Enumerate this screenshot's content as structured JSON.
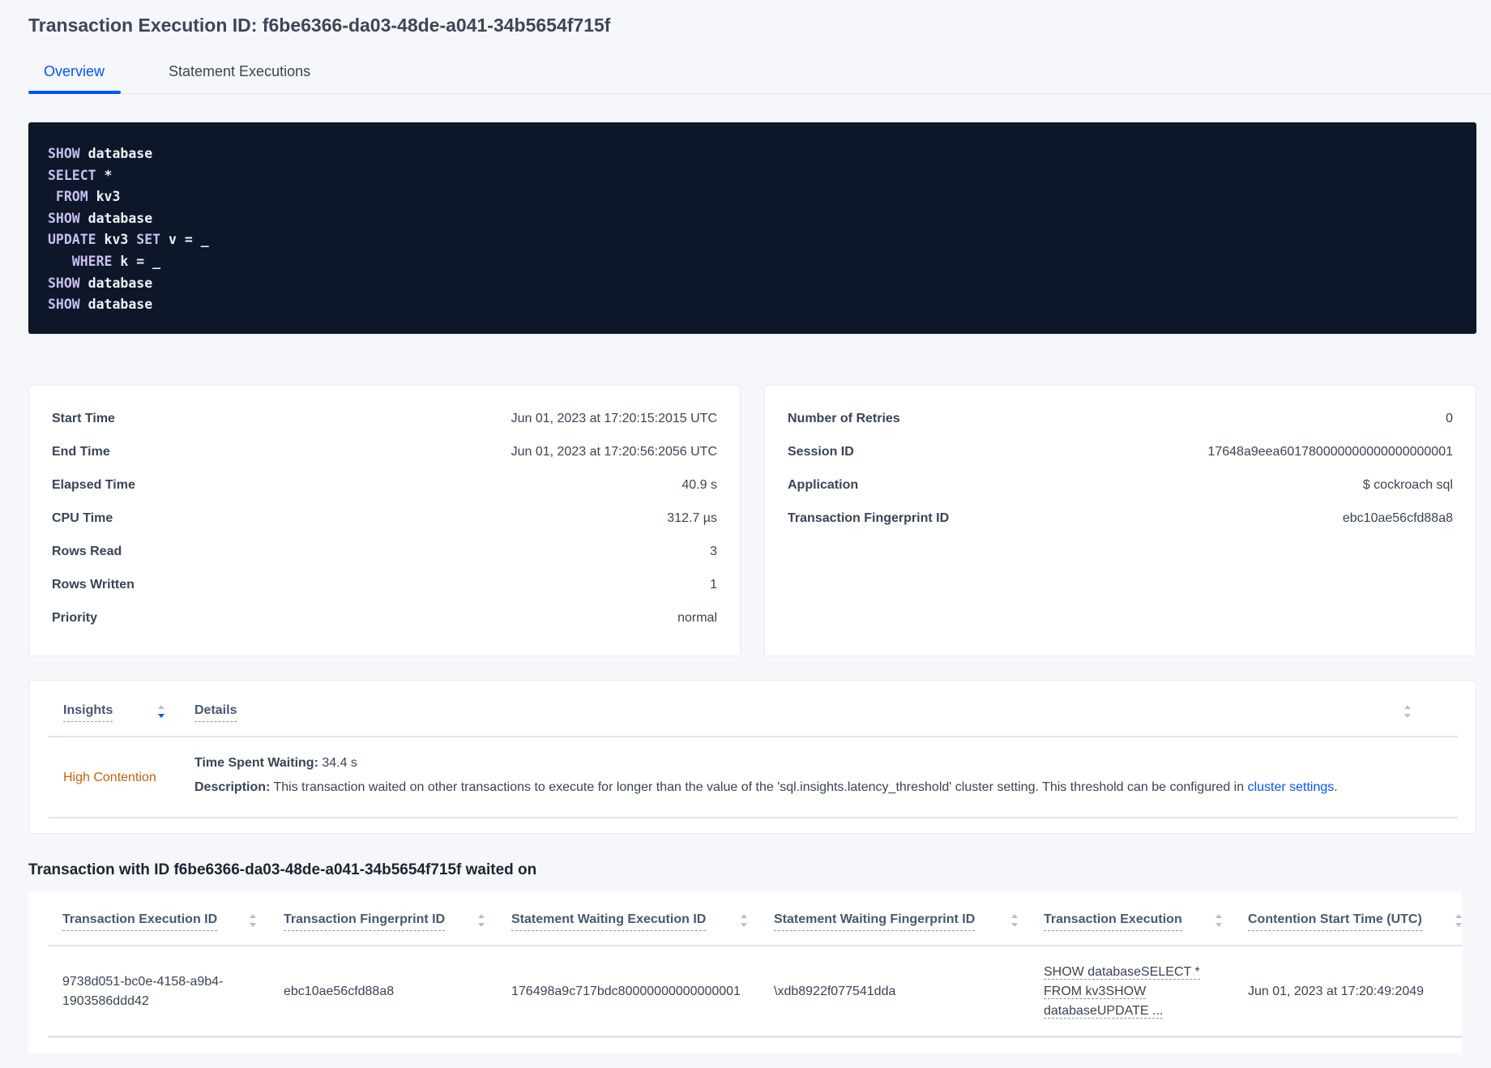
{
  "header": {
    "title": "Transaction Execution ID: f6be6366-da03-48de-a041-34b5654f715f"
  },
  "tabs": [
    {
      "label": "Overview",
      "active": true
    },
    {
      "label": "Statement Executions",
      "active": false
    }
  ],
  "sql": {
    "lines": [
      [
        {
          "k": "SHOW",
          "t": " database"
        }
      ],
      [
        {
          "k": "SELECT",
          "t": " *"
        }
      ],
      [
        {
          "k": " FROM",
          "t": " kv3"
        }
      ],
      [
        {
          "k": "SHOW",
          "t": " database"
        }
      ],
      [
        {
          "k": "UPDATE",
          "t": " kv3 "
        },
        {
          "k": "SET",
          "t": " v = _"
        }
      ],
      [
        {
          "k": "   WHERE",
          "t": " k = _"
        }
      ],
      [
        {
          "k": "SHOW",
          "t": " database"
        }
      ],
      [
        {
          "k": "SHOW",
          "t": " database"
        }
      ]
    ]
  },
  "summary_left": [
    {
      "label": "Start Time",
      "value": "Jun 01, 2023 at 17:20:15:2015 UTC"
    },
    {
      "label": "End Time",
      "value": "Jun 01, 2023 at 17:20:56:2056 UTC"
    },
    {
      "label": "Elapsed Time",
      "value": "40.9 s"
    },
    {
      "label": "CPU Time",
      "value": "312.7 µs"
    },
    {
      "label": "Rows Read",
      "value": "3"
    },
    {
      "label": "Rows Written",
      "value": "1"
    },
    {
      "label": "Priority",
      "value": "normal"
    }
  ],
  "summary_right": [
    {
      "label": "Number of Retries",
      "value": "0"
    },
    {
      "label": "Session ID",
      "value": "17648a9eea601780000000000000000001"
    },
    {
      "label": "Application",
      "value": "$ cockroach sql"
    },
    {
      "label": "Transaction Fingerprint ID",
      "value": "ebc10ae56cfd88a8",
      "link": true
    }
  ],
  "insights": {
    "columns": [
      "Insights",
      "Details"
    ],
    "rows": [
      {
        "insight": "High Contention",
        "insight_color": "#c2620a",
        "time_label": "Time Spent Waiting:",
        "time_value": " 34.4 s",
        "desc_label": "Description:",
        "desc_text": " This transaction waited on other transactions to execute for longer than the value of the 'sql.insights.latency_threshold' cluster setting. This threshold can be configured in ",
        "desc_link": "cluster settings",
        "desc_end": "."
      }
    ]
  },
  "waited_on": {
    "heading": "Transaction with ID f6be6366-da03-48de-a041-34b5654f715f waited on",
    "columns": [
      "Transaction Execution ID",
      "Transaction Fingerprint ID",
      "Statement Waiting Execution ID",
      "Statement Waiting Fingerprint ID",
      "Transaction Execution",
      "Contention Start Time (UTC)"
    ],
    "rows": [
      {
        "txn_exec_id": "9738d051-bc0e-4158-a9b4-1903586ddd42",
        "txn_fp_id": "ebc10ae56cfd88a8",
        "stmt_exec_id": "176498a9c717bdc80000000000000001",
        "stmt_fp_id": "\\xdb8922f077541dda",
        "txn_exec": [
          "SHOW databaseSELECT *",
          "FROM kv3SHOW",
          "databaseUPDATE ..."
        ],
        "start": "Jun 01, 2023 at 17:20:49:2049"
      }
    ]
  },
  "colors": {
    "accent": "#0055ff",
    "code_bg": "#0e1629",
    "warning": "#c2620a"
  }
}
